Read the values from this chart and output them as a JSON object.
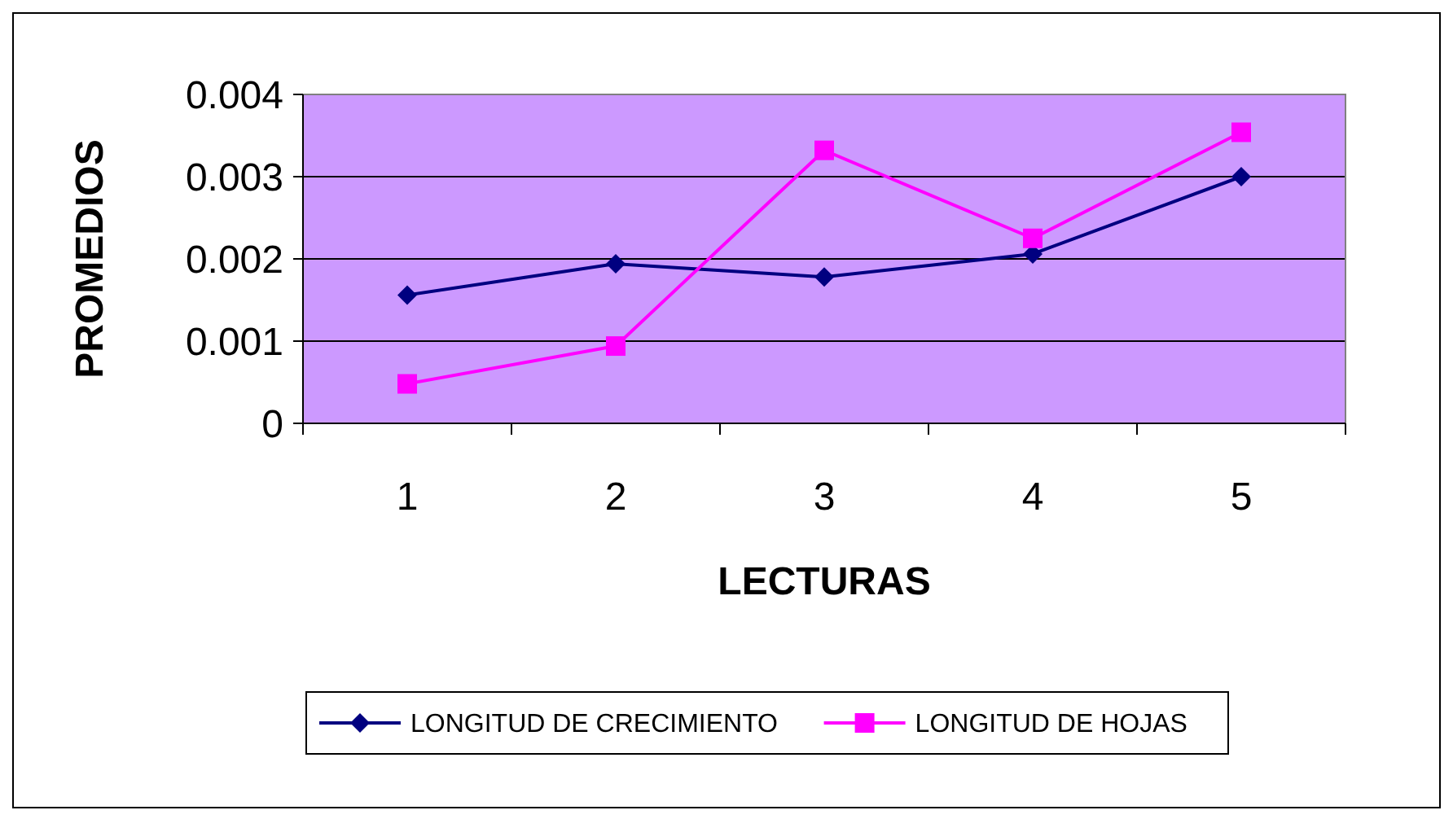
{
  "chart_data": {
    "type": "line",
    "xlabel": "LECTURAS",
    "ylabel": "PROMEDIOS",
    "categories": [
      "1",
      "2",
      "3",
      "4",
      "5"
    ],
    "series": [
      {
        "name": "LONGITUD DE CRECIMIENTO",
        "color": "#000080",
        "marker": "diamond",
        "values": [
          0.00156,
          0.00194,
          0.00178,
          0.00206,
          0.003
        ]
      },
      {
        "name": "LONGITUD DE HOJAS",
        "color": "#ff00ff",
        "marker": "square",
        "values": [
          0.00048,
          0.00094,
          0.00332,
          0.00225,
          0.00354
        ]
      }
    ],
    "ylim": [
      0,
      0.004
    ],
    "yticks": [
      0,
      0.001,
      0.002,
      0.003,
      0.004
    ],
    "grid": "y",
    "legend": "bottom"
  }
}
